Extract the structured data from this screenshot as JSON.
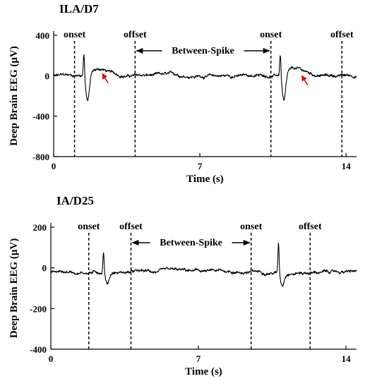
{
  "chart_data": [
    {
      "type": "line",
      "title": "ILA/D7",
      "xlabel": "Time (s)",
      "ylabel": "Deep Brain EEG (μV)",
      "xlim": [
        0,
        14.5
      ],
      "ylim": [
        -800,
        400
      ],
      "xticks": [
        0,
        7,
        14
      ],
      "yticks": [
        400,
        0,
        -400,
        -800
      ],
      "markers": [
        {
          "label": "onset",
          "x": 1.0
        },
        {
          "label": "offset",
          "x": 3.9
        },
        {
          "label": "onset",
          "x": 10.4
        },
        {
          "label": "offset",
          "x": 13.8
        }
      ],
      "span": {
        "label": "Between-Spike",
        "x0": 3.9,
        "x1": 10.4
      },
      "spikes": [
        {
          "x": 1.45,
          "peak": 230,
          "trough": -260,
          "recovery_peak": 110,
          "recovery_x": 2.2
        },
        {
          "x": 10.85,
          "peak": 230,
          "trough": -270,
          "recovery_peak": 90,
          "recovery_x": 11.6
        }
      ],
      "arrows": [
        {
          "x": 2.3,
          "y": 40
        },
        {
          "x": 11.85,
          "y": 20
        }
      ],
      "baseline": 0,
      "noise_amplitude": 18
    },
    {
      "type": "line",
      "title": "IA/D25",
      "xlabel": "Time (s)",
      "ylabel": "Deep Brain EEG (μV)",
      "xlim": [
        0,
        14.5
      ],
      "ylim": [
        -400,
        200
      ],
      "xticks": [
        0,
        7,
        14
      ],
      "yticks": [
        200,
        0,
        -200,
        -400
      ],
      "markers": [
        {
          "label": "onset",
          "x": 1.8
        },
        {
          "label": "offset",
          "x": 3.8
        },
        {
          "label": "onset",
          "x": 9.5
        },
        {
          "label": "offset",
          "x": 12.3
        }
      ],
      "span": {
        "label": "Between-Spike",
        "x0": 3.8,
        "x1": 9.5
      },
      "spikes": [
        {
          "x": 2.5,
          "peak": 110,
          "trough": -50
        },
        {
          "x": 10.8,
          "peak": 150,
          "trough": -60
        }
      ],
      "baseline": -20,
      "noise_amplitude": 9
    }
  ]
}
